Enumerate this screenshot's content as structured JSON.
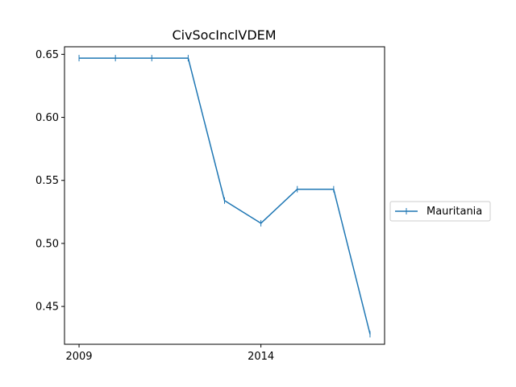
{
  "chart_data": {
    "type": "line",
    "title": "CivSocInclVDEM",
    "xlabel": "",
    "ylabel": "",
    "x": [
      2009,
      2010,
      2011,
      2012,
      2013,
      2014,
      2015,
      2016,
      2017
    ],
    "series": [
      {
        "name": "Mauritania",
        "color": "#1f77b4",
        "marker": "vline",
        "values": [
          0.647,
          0.647,
          0.647,
          0.647,
          0.534,
          0.516,
          0.543,
          0.543,
          0.428
        ]
      }
    ],
    "xlim": [
      2008.6,
      2017.4
    ],
    "ylim": [
      0.42,
      0.656
    ],
    "xticks": [
      2009,
      2014
    ],
    "yticks": [
      0.45,
      0.5,
      0.55,
      0.6,
      0.65
    ],
    "ytick_labels": [
      "0.45",
      "0.50",
      "0.55",
      "0.60",
      "0.65"
    ],
    "grid": false,
    "legend_position": "right"
  }
}
